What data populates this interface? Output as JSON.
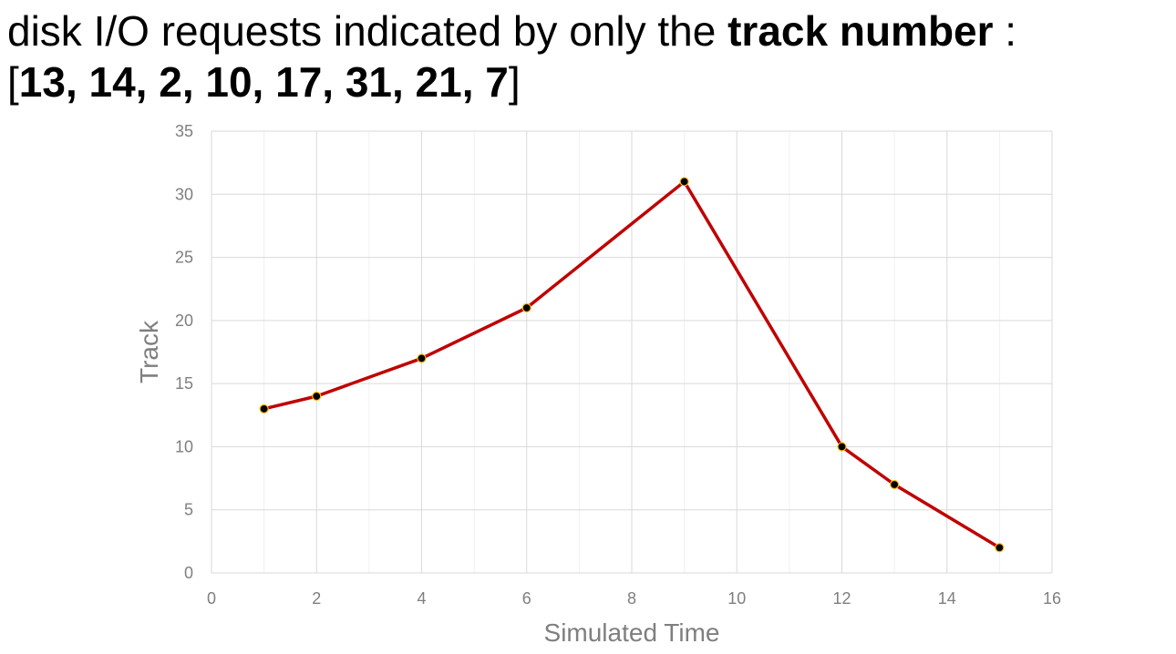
{
  "slide": {
    "line1_prefix": "disk I/O requests indicated by only the ",
    "line1_bold": "track number",
    "line1_suffix": " :",
    "line2_open": "[",
    "line2_values": "13, 14, 2, 10, 17, 31, 21, 7",
    "line2_close": "]"
  },
  "chart_data": {
    "type": "scatter",
    "mode": "lines+markers",
    "title": "",
    "xlabel": "Simulated Time",
    "ylabel": "Track",
    "xlim": [
      0,
      16
    ],
    "ylim": [
      0,
      35
    ],
    "x_ticks": [
      0,
      2,
      4,
      6,
      8,
      10,
      12,
      14,
      16
    ],
    "y_ticks": [
      0,
      5,
      10,
      15,
      20,
      25,
      30,
      35
    ],
    "grid": true,
    "legend": "none",
    "series": [
      {
        "x": [
          1,
          2,
          4,
          6,
          9,
          12,
          13,
          15
        ],
        "y": [
          13,
          14,
          17,
          21,
          31,
          10,
          7,
          2
        ],
        "line_color": "#c00000",
        "marker_color": "#000000",
        "marker_edge_color": "#ffc000"
      }
    ]
  }
}
